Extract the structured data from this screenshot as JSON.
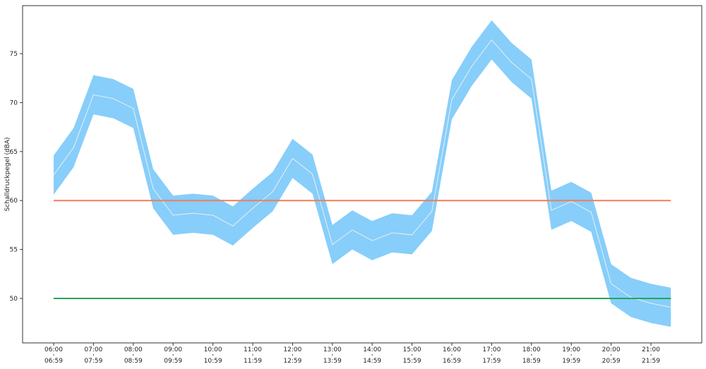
{
  "chart_data": {
    "type": "area",
    "title": "",
    "xlabel": "",
    "ylabel": "Schalldruckpegel (dBA)",
    "ylim": [
      45,
      79
    ],
    "yticks": [
      50,
      55,
      60,
      65,
      70,
      75
    ],
    "xtick_labels": [
      {
        "line1": "06:00",
        "line2": "06:59"
      },
      {
        "line1": "07:00",
        "line2": "07:59"
      },
      {
        "line1": "08:00",
        "line2": "08:59"
      },
      {
        "line1": "09:00",
        "line2": "09:59"
      },
      {
        "line1": "10:00",
        "line2": "10:59"
      },
      {
        "line1": "11:00",
        "line2": "11:59"
      },
      {
        "line1": "12:00",
        "line2": "12:59"
      },
      {
        "line1": "13:00",
        "line2": "13:59"
      },
      {
        "line1": "14:00",
        "line2": "14:59"
      },
      {
        "line1": "15:00",
        "line2": "15:59"
      },
      {
        "line1": "16:00",
        "line2": "16:59"
      },
      {
        "line1": "17:00",
        "line2": "17:59"
      },
      {
        "line1": "18:00",
        "line2": "18:59"
      },
      {
        "line1": "19:00",
        "line2": "19:59"
      },
      {
        "line1": "20:00",
        "line2": "20:59"
      },
      {
        "line1": "21:00",
        "line2": "21:59"
      }
    ],
    "x": [
      "06:00",
      "06:30",
      "07:00",
      "07:30",
      "08:00",
      "08:30",
      "09:00",
      "09:30",
      "10:00",
      "10:30",
      "11:00",
      "11:30",
      "12:00",
      "12:30",
      "13:00",
      "13:30",
      "14:00",
      "14:30",
      "15:00",
      "15:30",
      "16:00",
      "16:30",
      "17:00",
      "17:30",
      "18:00",
      "18:30",
      "19:00",
      "19:30",
      "20:00",
      "20:30",
      "21:00",
      "21:30"
    ],
    "series": [
      {
        "values": [
          62.6,
          65.4,
          70.8,
          70.4,
          69.4,
          61.2,
          58.5,
          58.7,
          58.5,
          57.4,
          59.2,
          60.9,
          64.3,
          62.7,
          55.5,
          57.0,
          55.9,
          56.7,
          56.5,
          58.9,
          70.3,
          73.7,
          76.4,
          74.1,
          72.4,
          59.0,
          59.9,
          58.8,
          51.5,
          50.1,
          49.5,
          49.1
        ],
        "lower": [
          60.6,
          63.4,
          68.8,
          68.4,
          67.4,
          59.2,
          56.5,
          56.7,
          56.5,
          55.4,
          57.2,
          58.9,
          62.3,
          60.7,
          53.5,
          55.0,
          53.9,
          54.7,
          54.5,
          56.9,
          68.3,
          71.7,
          74.4,
          72.1,
          70.4,
          57.0,
          57.9,
          56.8,
          49.5,
          48.1,
          47.5,
          47.1
        ],
        "upper": [
          64.6,
          67.4,
          72.8,
          72.4,
          71.4,
          63.2,
          60.5,
          60.7,
          60.5,
          59.4,
          61.2,
          62.9,
          66.3,
          64.7,
          57.5,
          59.0,
          57.9,
          58.7,
          58.5,
          60.9,
          72.3,
          75.7,
          78.4,
          76.1,
          74.4,
          61.0,
          61.9,
          60.8,
          53.5,
          52.1,
          51.5,
          51.1
        ]
      }
    ],
    "reference_lines": [
      {
        "value": 60
      },
      {
        "value": 50
      }
    ],
    "grid": false,
    "legend": "none",
    "colors": {
      "band": "#87cefa",
      "line": "#e9eef2",
      "upper_threshold": "#f07c5c",
      "lower_threshold": "#27a35d",
      "axis": "#333333"
    }
  }
}
